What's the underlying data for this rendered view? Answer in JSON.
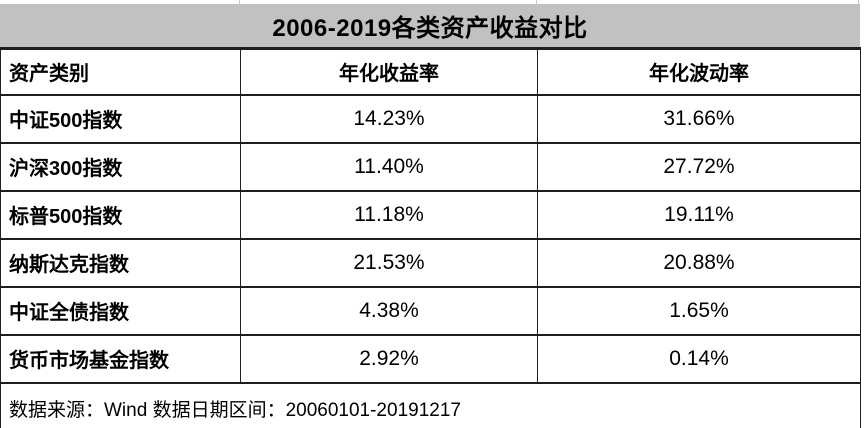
{
  "chart_data": {
    "type": "table",
    "title": "2006-2019各类资产收益对比",
    "columns": [
      "资产类别",
      "年化收益率",
      "年化波动率"
    ],
    "rows": [
      [
        "中证500指数",
        "14.23%",
        "31.66%"
      ],
      [
        "沪深300指数",
        "11.40%",
        "27.72%"
      ],
      [
        "标普500指数",
        "11.18%",
        "19.11%"
      ],
      [
        "纳斯达克指数",
        "21.53%",
        "20.88%"
      ],
      [
        "中证全债指数",
        "4.38%",
        "1.65%"
      ],
      [
        "货币市场基金指数",
        "2.92%",
        "0.14%"
      ]
    ],
    "source_note": "数据来源：Wind  数据日期区间：20060101-20191217",
    "layout": {
      "legend": "none",
      "grid": "full-borders",
      "header_style": "bold",
      "first_column_style": "bold-left-aligned",
      "value_alignment": "center"
    }
  },
  "colors": {
    "title_bar_bg": "#c1c1c1",
    "border_color": "#1f1f1f",
    "text_color": "#000000",
    "page_bg": "#ffffff"
  }
}
